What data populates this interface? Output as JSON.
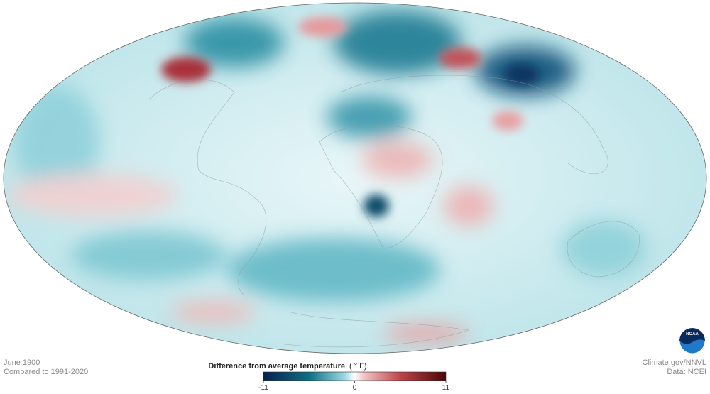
{
  "map": {
    "date": "June 1900",
    "baseline": "Compared to 1991-2020",
    "credit": "Climate.gov/NNVL",
    "source": "Data: NCEI",
    "logo": "NOAA"
  },
  "legend": {
    "title": "Difference from average temperature",
    "unit": "( ° F)",
    "min": -11,
    "max": 11,
    "ticks": [
      -11,
      0,
      11
    ]
  }
}
